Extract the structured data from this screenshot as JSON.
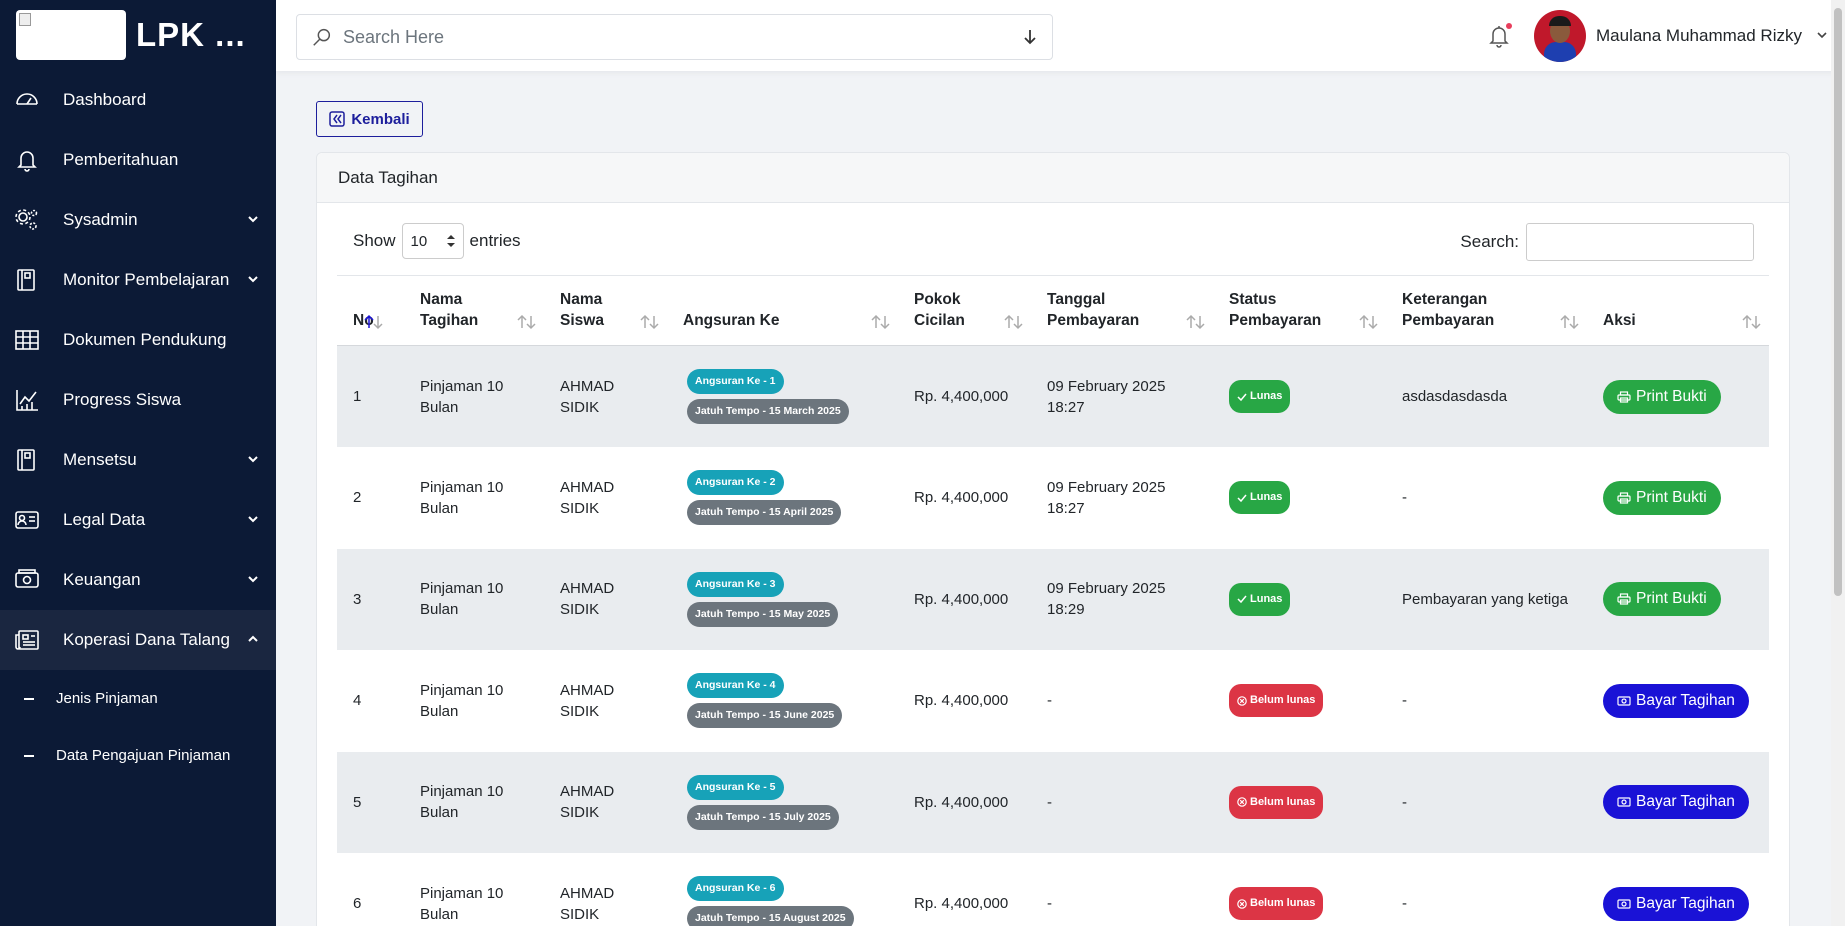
{
  "brand": {
    "title": "LPK ..."
  },
  "sidebar": {
    "items": [
      {
        "label": "Dashboard",
        "icon": "gauge-icon",
        "caret": ""
      },
      {
        "label": "Pemberitahuan",
        "icon": "bell-icon",
        "caret": ""
      },
      {
        "label": "Sysadmin",
        "icon": "gears-icon",
        "caret": "down"
      },
      {
        "label": "Monitor Pembelajaran",
        "icon": "book-icon",
        "caret": "down"
      },
      {
        "label": "Dokumen Pendukung",
        "icon": "table-icon",
        "caret": "down-none"
      },
      {
        "label": "Progress Siswa",
        "icon": "chart-icon",
        "caret": ""
      },
      {
        "label": "Mensetsu",
        "icon": "book-icon",
        "caret": "down"
      },
      {
        "label": "Legal Data",
        "icon": "id-card-icon",
        "caret": "down"
      },
      {
        "label": "Keuangan",
        "icon": "money-icon",
        "caret": "down"
      },
      {
        "label": "Koperasi Dana Talang",
        "icon": "newspaper-icon",
        "caret": "up"
      }
    ],
    "subitems": [
      {
        "label": "Jenis Pinjaman"
      },
      {
        "label": "Data Pengajuan Pinjaman"
      }
    ]
  },
  "topbar": {
    "search_placeholder": "Search Here",
    "username": "Maulana Muhammad Rizky"
  },
  "main": {
    "back_label": "Kembali",
    "card_title": "Data Tagihan",
    "show_label": "Show",
    "entries_value": "10",
    "entries_label": "entries",
    "search_label": "Search:",
    "search_value": ""
  },
  "table": {
    "headers": [
      {
        "l1": "No",
        "l2": ""
      },
      {
        "l1": "Nama",
        "l2": "Tagihan"
      },
      {
        "l1": "Nama",
        "l2": "Siswa"
      },
      {
        "l1": "Angsuran Ke",
        "l2": ""
      },
      {
        "l1": "Pokok",
        "l2": "Cicilan"
      },
      {
        "l1": "Tanggal",
        "l2": "Pembayaran"
      },
      {
        "l1": "Status",
        "l2": "Pembayaran"
      },
      {
        "l1": "Keterangan",
        "l2": "Pembayaran"
      },
      {
        "l1": "Aksi",
        "l2": ""
      }
    ],
    "rows": [
      {
        "no": "1",
        "tagihan": "Pinjaman 10 Bulan",
        "siswa": "AHMAD SIDIK",
        "angsuran": "Angsuran Ke - 1",
        "jatuh_tempo": "Jatuh Tempo - 15 March 2025",
        "pokok": "Rp. 4,400,000",
        "tanggal": "09 February 2025 18:27",
        "status": "Lunas",
        "status_type": "ok",
        "keterangan": "asdasdasdasda",
        "aksi": "Print Bukti",
        "aksi_type": "print"
      },
      {
        "no": "2",
        "tagihan": "Pinjaman 10 Bulan",
        "siswa": "AHMAD SIDIK",
        "angsuran": "Angsuran Ke - 2",
        "jatuh_tempo": "Jatuh Tempo - 15 April 2025",
        "pokok": "Rp. 4,400,000",
        "tanggal": "09 February 2025 18:27",
        "status": "Lunas",
        "status_type": "ok",
        "keterangan": "-",
        "aksi": "Print Bukti",
        "aksi_type": "print"
      },
      {
        "no": "3",
        "tagihan": "Pinjaman 10 Bulan",
        "siswa": "AHMAD SIDIK",
        "angsuran": "Angsuran Ke - 3",
        "jatuh_tempo": "Jatuh Tempo - 15 May 2025",
        "pokok": "Rp. 4,400,000",
        "tanggal": "09 February 2025 18:29",
        "status": "Lunas",
        "status_type": "ok",
        "keterangan": "Pembayaran yang ketiga",
        "aksi": "Print Bukti",
        "aksi_type": "print"
      },
      {
        "no": "4",
        "tagihan": "Pinjaman 10 Bulan",
        "siswa": "AHMAD SIDIK",
        "angsuran": "Angsuran Ke - 4",
        "jatuh_tempo": "Jatuh Tempo - 15 June 2025",
        "pokok": "Rp. 4,400,000",
        "tanggal": "-",
        "status": "Belum lunas",
        "status_type": "no",
        "keterangan": "-",
        "aksi": "Bayar Tagihan",
        "aksi_type": "pay"
      },
      {
        "no": "5",
        "tagihan": "Pinjaman 10 Bulan",
        "siswa": "AHMAD SIDIK",
        "angsuran": "Angsuran Ke - 5",
        "jatuh_tempo": "Jatuh Tempo - 15 July 2025",
        "pokok": "Rp. 4,400,000",
        "tanggal": "-",
        "status": "Belum lunas",
        "status_type": "no",
        "keterangan": "-",
        "aksi": "Bayar Tagihan",
        "aksi_type": "pay"
      },
      {
        "no": "6",
        "tagihan": "Pinjaman 10 Bulan",
        "siswa": "AHMAD SIDIK",
        "angsuran": "Angsuran Ke - 6",
        "jatuh_tempo": "Jatuh Tempo - 15 August 2025",
        "pokok": "Rp. 4,400,000",
        "tanggal": "-",
        "status": "Belum lunas",
        "status_type": "no",
        "keterangan": "-",
        "aksi": "Bayar Tagihan",
        "aksi_type": "pay"
      }
    ]
  },
  "colors": {
    "sidebar_bg": "#0c1a36",
    "primary": "#1a12d6",
    "success": "#28a745",
    "danger": "#dc3545",
    "info": "#17a2b8",
    "secondary": "#6c757d"
  }
}
